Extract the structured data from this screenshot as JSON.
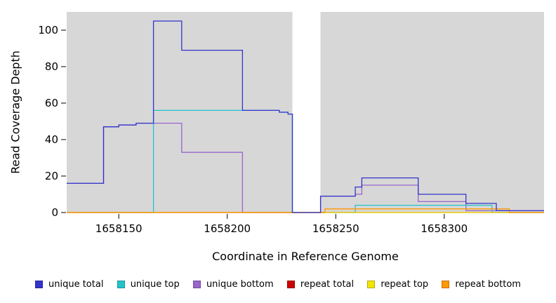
{
  "chart_data": {
    "type": "line",
    "subtype": "step",
    "title": "",
    "xlabel": "Coordinate in Reference Genome",
    "ylabel": "Read Coverage Depth",
    "x_domain": [
      1658126,
      1658346
    ],
    "y_max": 110,
    "ylim": [
      0,
      110
    ],
    "x_ticks": [
      1658150,
      1658200,
      1658250,
      1658300
    ],
    "y_ticks": [
      0,
      20,
      40,
      60,
      80,
      100
    ],
    "grid": false,
    "legend_position": "bottom",
    "panel_color": "#d7d7d7",
    "gap_region": [
      1658230,
      1658243
    ],
    "shaded_regions": [
      [
        1658126,
        1658230
      ],
      [
        1658243,
        1658346
      ]
    ],
    "draw_order": [
      2,
      1,
      3,
      4,
      5,
      0
    ],
    "series": [
      {
        "name": "unique total",
        "color": "#3333cc",
        "points": [
          [
            1658126,
            16
          ],
          [
            1658143,
            47
          ],
          [
            1658150,
            48
          ],
          [
            1658158,
            49
          ],
          [
            1658166,
            105
          ],
          [
            1658179,
            89
          ],
          [
            1658207,
            56
          ],
          [
            1658224,
            55
          ],
          [
            1658228,
            54
          ],
          [
            1658230,
            0
          ],
          [
            1658243,
            9
          ],
          [
            1658259,
            14
          ],
          [
            1658262,
            19
          ],
          [
            1658288,
            10
          ],
          [
            1658310,
            5
          ],
          [
            1658324,
            1
          ],
          [
            1658346,
            1
          ]
        ]
      },
      {
        "name": "unique top",
        "color": "#22c4cc",
        "points": [
          [
            1658126,
            0
          ],
          [
            1658166,
            56
          ],
          [
            1658224,
            55
          ],
          [
            1658228,
            54
          ],
          [
            1658230,
            0
          ],
          [
            1658259,
            4
          ],
          [
            1658322,
            0
          ],
          [
            1658346,
            0
          ]
        ]
      },
      {
        "name": "unique bottom",
        "color": "#9966cc",
        "points": [
          [
            1658126,
            16
          ],
          [
            1658143,
            47
          ],
          [
            1658150,
            48
          ],
          [
            1658158,
            49
          ],
          [
            1658179,
            33
          ],
          [
            1658207,
            0
          ],
          [
            1658243,
            9
          ],
          [
            1658259,
            10
          ],
          [
            1658262,
            15
          ],
          [
            1658288,
            6
          ],
          [
            1658310,
            1
          ],
          [
            1658324,
            1
          ],
          [
            1658346,
            1
          ]
        ]
      },
      {
        "name": "repeat total",
        "color": "#cc0000",
        "points": [
          [
            1658126,
            0
          ],
          [
            1658346,
            0
          ]
        ]
      },
      {
        "name": "repeat top",
        "color": "#f2e500",
        "points": [
          [
            1658126,
            0
          ],
          [
            1658346,
            0
          ]
        ]
      },
      {
        "name": "repeat bottom",
        "color": "#ff9900",
        "points": [
          [
            1658126,
            0
          ],
          [
            1658245,
            2
          ],
          [
            1658330,
            0
          ],
          [
            1658346,
            0
          ]
        ]
      }
    ]
  }
}
